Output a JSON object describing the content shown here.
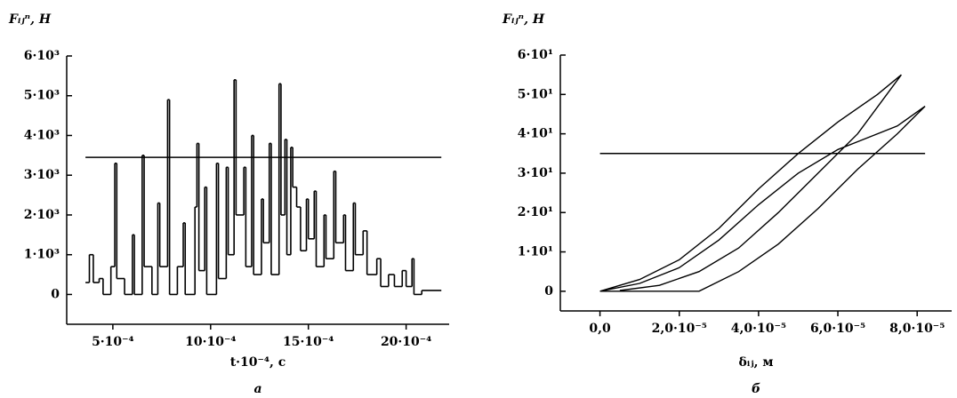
{
  "chart_data": [
    {
      "type": "line",
      "drawstyle": "steps-post",
      "ylabel": "Fᵢⱼⁿ, Н",
      "xlabel": "t·10⁻⁴, с",
      "caption": "а",
      "color": "#000000",
      "hline": 3450,
      "x": [
        0.00036,
        0.00038,
        0.0004,
        0.00043,
        0.00045,
        0.00049,
        0.00051,
        0.00052,
        0.00056,
        0.0006,
        0.00061,
        0.00065,
        0.00066,
        0.0007,
        0.00073,
        0.00074,
        0.00078,
        0.00079,
        0.00083,
        0.00086,
        0.00087,
        0.00092,
        0.00093,
        0.00094,
        0.00097,
        0.00098,
        0.00103,
        0.00104,
        0.00108,
        0.00109,
        0.00112,
        0.00113,
        0.00117,
        0.00118,
        0.00121,
        0.00122,
        0.00126,
        0.00127,
        0.0013,
        0.00131,
        0.00135,
        0.00136,
        0.00138,
        0.00139,
        0.00141,
        0.00142,
        0.00144,
        0.00146,
        0.00149,
        0.0015,
        0.00153,
        0.00154,
        0.00158,
        0.00159,
        0.00163,
        0.00164,
        0.00168,
        0.00169,
        0.00173,
        0.00174,
        0.00178,
        0.0018,
        0.00185,
        0.00187,
        0.00191,
        0.00194,
        0.00198,
        0.002,
        0.00203,
        0.00204,
        0.00208,
        0.00218
      ],
      "values": [
        300,
        1000,
        300,
        400,
        0,
        700,
        3300,
        400,
        0,
        1500,
        0,
        3500,
        700,
        0,
        2300,
        700,
        4900,
        0,
        700,
        1800,
        0,
        2200,
        3800,
        600,
        2700,
        0,
        3300,
        400,
        3200,
        1000,
        5400,
        2000,
        3200,
        700,
        4000,
        500,
        2400,
        1300,
        3800,
        500,
        5300,
        2000,
        3900,
        1000,
        3700,
        2700,
        2200,
        1100,
        2400,
        1400,
        2600,
        700,
        2000,
        900,
        3100,
        1300,
        2000,
        600,
        2300,
        1000,
        1600,
        500,
        900,
        200,
        500,
        200,
        600,
        200,
        900,
        0,
        100,
        100
      ],
      "xlim": [
        0.000264,
        0.00222
      ],
      "ylim": [
        -750,
        6000
      ],
      "xticks": [
        {
          "value": 0.0005,
          "label": "5·10⁻⁴"
        },
        {
          "value": 0.001,
          "label": "10·10⁻⁴"
        },
        {
          "value": 0.0015,
          "label": "15·10⁻⁴"
        },
        {
          "value": 0.002,
          "label": "20·10⁻⁴"
        }
      ],
      "yticks": [
        0,
        {
          "value": 1000,
          "label": "1·10³"
        },
        {
          "value": 2000,
          "label": "2·10³"
        },
        {
          "value": 3000,
          "label": "3·10³"
        },
        {
          "value": 4000,
          "label": "4·10³"
        },
        {
          "value": 5000,
          "label": "5·10³"
        },
        {
          "value": 6000,
          "label": "6·10³"
        }
      ]
    },
    {
      "type": "line",
      "ylabel": "Fᵢⱼⁿ, Н",
      "xlabel": "δᵢⱼ, м",
      "caption": "б",
      "color": "#000000",
      "hline": 35,
      "x": [
        0,
        2.5e-05,
        3.5e-05,
        4.5e-05,
        5.5e-05,
        6.5e-05,
        7.5e-05,
        8.2e-05,
        7.5e-05,
        6.5e-05,
        6e-05,
        5e-05,
        4e-05,
        3e-05,
        2e-05,
        1e-05,
        0,
        1e-05,
        2e-05,
        3e-05,
        4e-05,
        5e-05,
        6e-05,
        7e-05,
        7.6e-05,
        6.5e-05,
        5.5e-05,
        4.5e-05,
        3.5e-05,
        2.5e-05,
        1.5e-05,
        5e-06
      ],
      "values": [
        0,
        0,
        5,
        12,
        21,
        31,
        40,
        47,
        42,
        38,
        36,
        30,
        22,
        13,
        6,
        2,
        0,
        3,
        8,
        16,
        26,
        35,
        43,
        50,
        55,
        40,
        30,
        20,
        11,
        5,
        1.5,
        0.2
      ],
      "xlim": [
        -1e-05,
        8.87e-05
      ],
      "ylim": [
        -5,
        60
      ],
      "xticks": [
        {
          "value": 0,
          "label": "0,0"
        },
        {
          "value": 2e-05,
          "label": "2,0·10⁻⁵"
        },
        {
          "value": 4e-05,
          "label": "4,0·10⁻⁵"
        },
        {
          "value": 6e-05,
          "label": "6,0·10⁻⁵"
        },
        {
          "value": 8e-05,
          "label": "8,0·10⁻⁵"
        }
      ],
      "yticks": [
        0,
        {
          "value": 10,
          "label": "1·10¹"
        },
        {
          "value": 20,
          "label": "2·10¹"
        },
        {
          "value": 30,
          "label": "3·10¹"
        },
        {
          "value": 40,
          "label": "4·10¹"
        },
        {
          "value": 50,
          "label": "5·10¹"
        },
        {
          "value": 60,
          "label": "6·10¹"
        }
      ]
    }
  ]
}
